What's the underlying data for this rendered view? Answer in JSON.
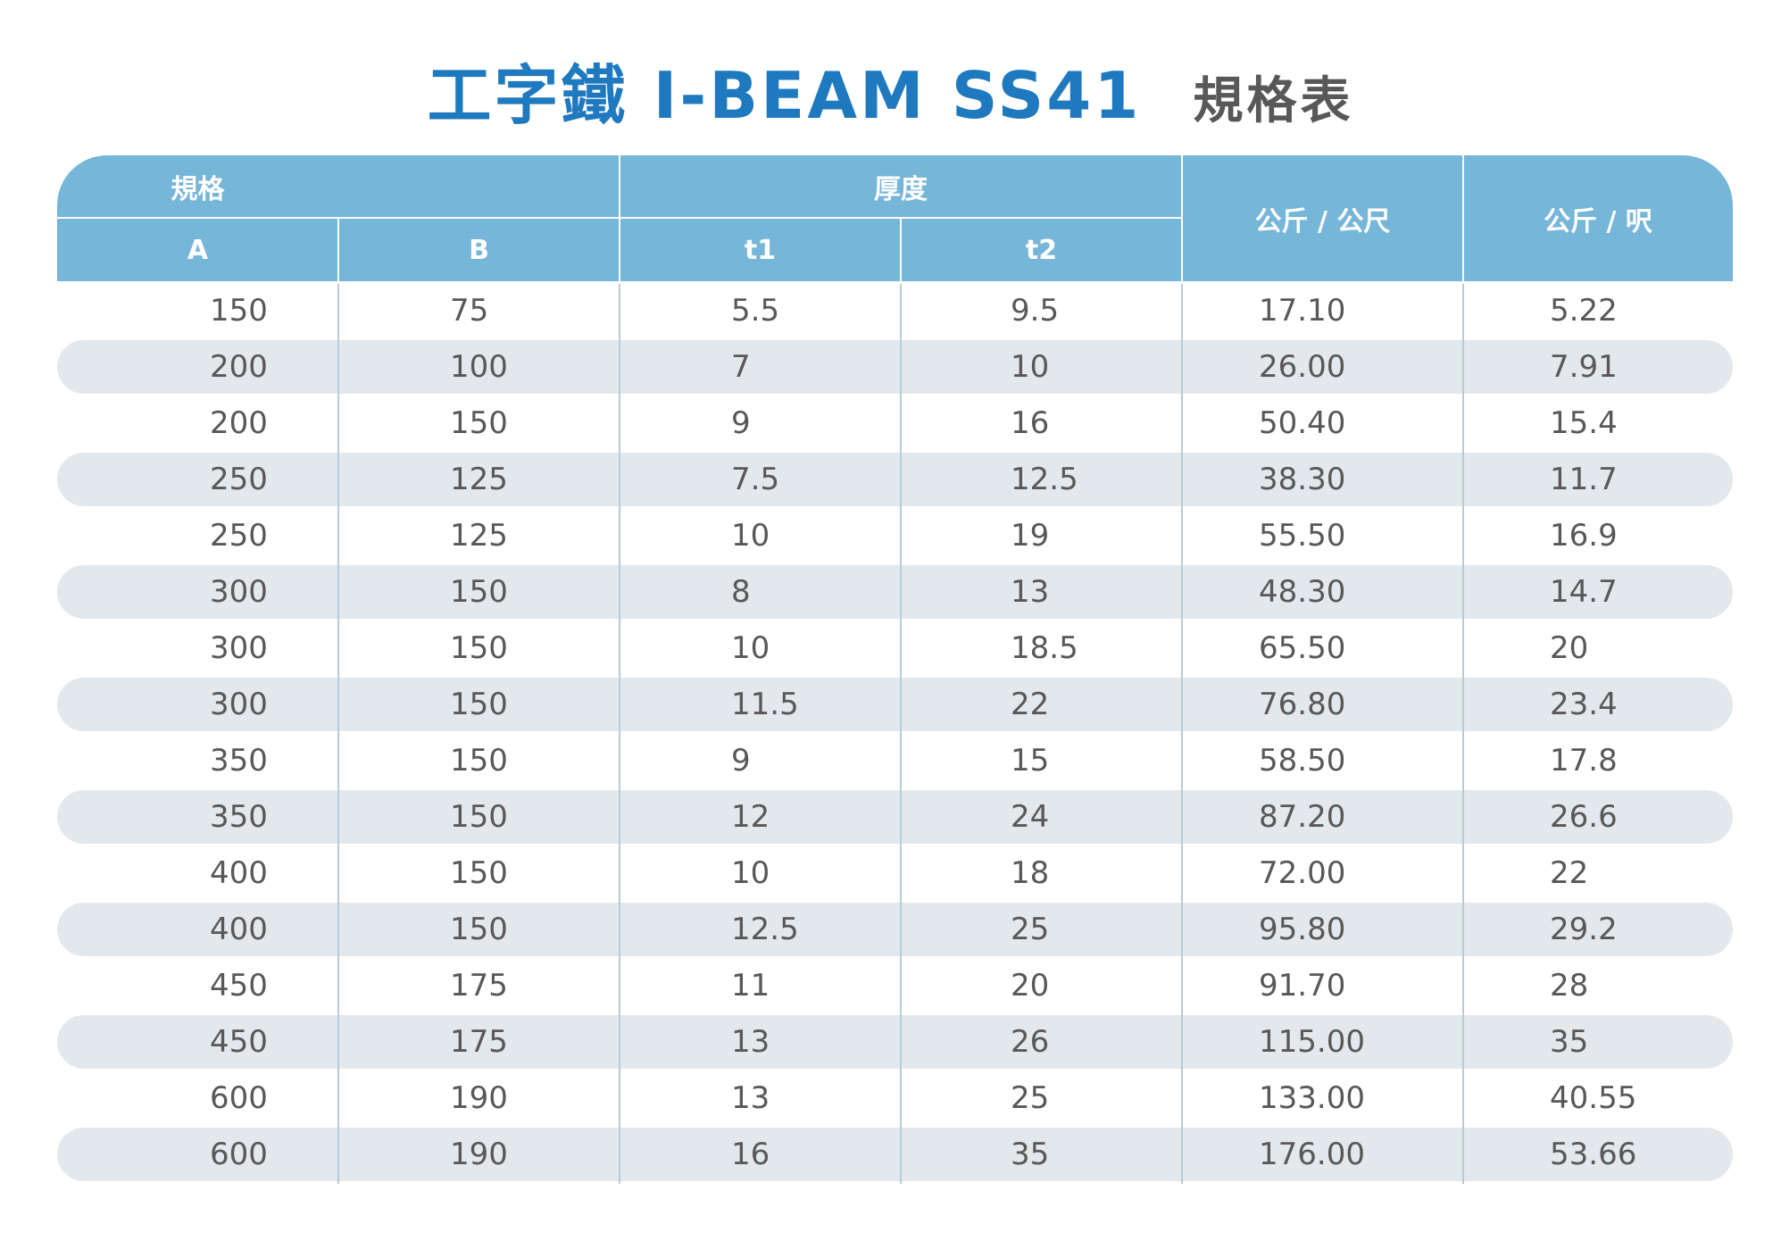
{
  "title": {
    "main": "工字鐵  I-BEAM SS41",
    "sub": "規格表"
  },
  "colors": {
    "title_blue": "#1f79bf",
    "header_blue": "#76b6d8",
    "stripe": "#e2e8ec",
    "text": "#595757"
  },
  "headers": {
    "group_spec": "規格",
    "group_thickness": "厚度",
    "col_a": "A",
    "col_b": "B",
    "col_t1": "t1",
    "col_t2": "t2",
    "col_kg_m": "公斤 / 公尺",
    "col_kg_ft": "公斤 / 呎"
  },
  "rows": [
    [
      "150",
      "75",
      "5.5",
      "9.5",
      "17.10",
      "5.22"
    ],
    [
      "200",
      "100",
      "7",
      "10",
      "26.00",
      "7.91"
    ],
    [
      "200",
      "150",
      "9",
      "16",
      "50.40",
      "15.4"
    ],
    [
      "250",
      "125",
      "7.5",
      "12.5",
      "38.30",
      "11.7"
    ],
    [
      "250",
      "125",
      "10",
      "19",
      "55.50",
      "16.9"
    ],
    [
      "300",
      "150",
      "8",
      "13",
      "48.30",
      "14.7"
    ],
    [
      "300",
      "150",
      "10",
      "18.5",
      "65.50",
      "20"
    ],
    [
      "300",
      "150",
      "11.5",
      "22",
      "76.80",
      "23.4"
    ],
    [
      "350",
      "150",
      "9",
      "15",
      "58.50",
      "17.8"
    ],
    [
      "350",
      "150",
      "12",
      "24",
      "87.20",
      "26.6"
    ],
    [
      "400",
      "150",
      "10",
      "18",
      "72.00",
      "22"
    ],
    [
      "400",
      "150",
      "12.5",
      "25",
      "95.80",
      "29.2"
    ],
    [
      "450",
      "175",
      "11",
      "20",
      "91.70",
      "28"
    ],
    [
      "450",
      "175",
      "13",
      "26",
      "115.00",
      "35"
    ],
    [
      "600",
      "190",
      "13",
      "25",
      "133.00",
      "40.55"
    ],
    [
      "600",
      "190",
      "16",
      "35",
      "176.00",
      "53.66"
    ]
  ]
}
